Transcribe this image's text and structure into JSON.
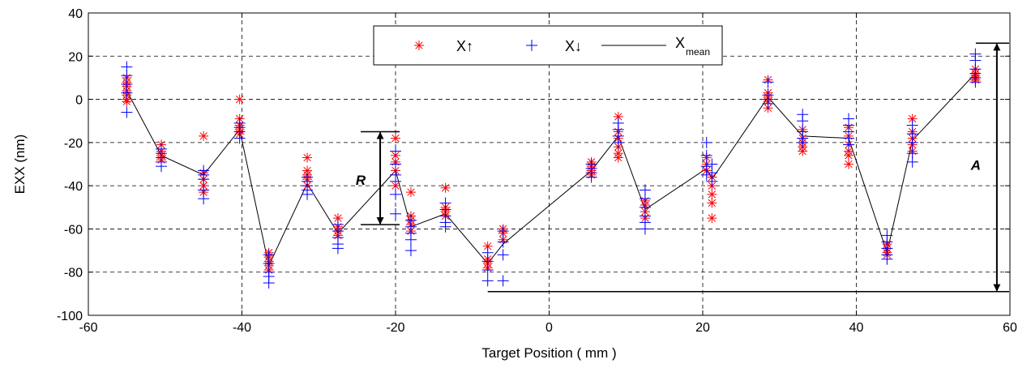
{
  "chart_data": {
    "type": "scatter",
    "xlabel": "Target Position ( mm )",
    "ylabel": "EXX (nm)",
    "xlim": [
      -60,
      60
    ],
    "ylim": [
      -100,
      40
    ],
    "xticks": [
      -60,
      -40,
      -20,
      0,
      20,
      40,
      60
    ],
    "yticks": [
      -100,
      -80,
      -60,
      -40,
      -20,
      0,
      20,
      40
    ],
    "xtick_labels": [
      "-60",
      "-40",
      "-20",
      "0",
      "20",
      "40",
      "60"
    ],
    "ytick_labels": [
      "-100",
      "-80",
      "-60",
      "-40",
      "-20",
      "0",
      "20",
      "40"
    ],
    "grid": "dashed",
    "legend": {
      "placement": "top-center",
      "entries": [
        {
          "label": "X↑",
          "marker": "star",
          "color": "#ff0000"
        },
        {
          "label": "X↓",
          "marker": "plus",
          "color": "#0000ff"
        },
        {
          "label_main": "X",
          "label_sub": "mean",
          "marker": "line",
          "color": "#000000"
        }
      ]
    },
    "series": [
      {
        "name": "X↑",
        "marker": "star",
        "color": "#ff0000",
        "points": [
          [
            -55,
            10
          ],
          [
            -55,
            8
          ],
          [
            -55,
            6
          ],
          [
            -55,
            4
          ],
          [
            -55,
            2
          ],
          [
            -55,
            0
          ],
          [
            -55,
            -1
          ],
          [
            -50.5,
            -21
          ],
          [
            -50.5,
            -24
          ],
          [
            -50.5,
            -26
          ],
          [
            -50.5,
            -28
          ],
          [
            -45,
            -17
          ],
          [
            -45,
            -34
          ],
          [
            -45,
            -37
          ],
          [
            -45,
            -40
          ],
          [
            -45,
            -43
          ],
          [
            -40.3,
            0
          ],
          [
            -40.3,
            -9
          ],
          [
            -40.3,
            -12
          ],
          [
            -40.3,
            -14
          ],
          [
            -40.3,
            -16
          ],
          [
            -36.5,
            -71
          ],
          [
            -36.5,
            -73
          ],
          [
            -36.5,
            -75
          ],
          [
            -36.5,
            -77
          ],
          [
            -36.5,
            -79
          ],
          [
            -31.5,
            -27
          ],
          [
            -31.5,
            -33
          ],
          [
            -31.5,
            -35
          ],
          [
            -31.5,
            -37
          ],
          [
            -31.5,
            -40
          ],
          [
            -27.5,
            -55
          ],
          [
            -27.5,
            -59
          ],
          [
            -27.5,
            -61
          ],
          [
            -27.5,
            -63
          ],
          [
            -20,
            -18
          ],
          [
            -20,
            -26
          ],
          [
            -20,
            -29
          ],
          [
            -20,
            -33
          ],
          [
            -20,
            -40
          ],
          [
            -18,
            -43
          ],
          [
            -18,
            -54
          ],
          [
            -18,
            -56
          ],
          [
            -18,
            -58
          ],
          [
            -18,
            -61
          ],
          [
            -13.5,
            -41
          ],
          [
            -13.5,
            -50
          ],
          [
            -13.5,
            -52
          ],
          [
            -13.5,
            -54
          ],
          [
            -8,
            -68
          ],
          [
            -8,
            -74
          ],
          [
            -8,
            -76
          ],
          [
            -8,
            -78
          ],
          [
            -6,
            -60
          ],
          [
            -6,
            -62
          ],
          [
            -6,
            -65
          ],
          [
            5.5,
            -29
          ],
          [
            5.5,
            -31
          ],
          [
            5.5,
            -33
          ],
          [
            5.5,
            -35
          ],
          [
            9,
            -8
          ],
          [
            9,
            -15
          ],
          [
            9,
            -18
          ],
          [
            9,
            -22
          ],
          [
            9,
            -25
          ],
          [
            9,
            -27
          ],
          [
            12.5,
            -47
          ],
          [
            12.5,
            -49
          ],
          [
            12.5,
            -52
          ],
          [
            12.5,
            -55
          ],
          [
            20.5,
            -27
          ],
          [
            20.5,
            -30
          ],
          [
            20.5,
            -33
          ],
          [
            21.2,
            -36
          ],
          [
            21.2,
            -40
          ],
          [
            21.2,
            -44
          ],
          [
            21.2,
            -48
          ],
          [
            21.2,
            -55
          ],
          [
            28.5,
            9
          ],
          [
            28.5,
            3
          ],
          [
            28.5,
            1
          ],
          [
            28.5,
            -1
          ],
          [
            28.5,
            -4
          ],
          [
            33,
            -14
          ],
          [
            33,
            -18
          ],
          [
            33,
            -20
          ],
          [
            33,
            -22
          ],
          [
            33,
            -24
          ],
          [
            39,
            -13
          ],
          [
            39,
            -17
          ],
          [
            39,
            -21
          ],
          [
            39,
            -24
          ],
          [
            39,
            -26
          ],
          [
            39,
            -30
          ],
          [
            44,
            -67
          ],
          [
            44,
            -69
          ],
          [
            44,
            -71
          ],
          [
            44,
            -72
          ],
          [
            47.3,
            -9
          ],
          [
            47.3,
            -15
          ],
          [
            47.3,
            -18
          ],
          [
            47.3,
            -21
          ],
          [
            47.3,
            -24
          ],
          [
            55.5,
            14
          ],
          [
            55.5,
            12
          ],
          [
            55.5,
            11
          ],
          [
            55.5,
            10
          ],
          [
            55.5,
            9
          ]
        ]
      },
      {
        "name": "X↓",
        "marker": "plus",
        "color": "#0000ff",
        "points": [
          [
            -55,
            15
          ],
          [
            -55,
            11
          ],
          [
            -55,
            7
          ],
          [
            -55,
            3
          ],
          [
            -55,
            -6
          ],
          [
            -50.5,
            -23
          ],
          [
            -50.5,
            -25
          ],
          [
            -50.5,
            -27
          ],
          [
            -50.5,
            -29
          ],
          [
            -50.5,
            -31
          ],
          [
            -45,
            -33
          ],
          [
            -45,
            -35
          ],
          [
            -45,
            -37
          ],
          [
            -45,
            -42
          ],
          [
            -45,
            -46
          ],
          [
            -40.3,
            -11
          ],
          [
            -40.3,
            -13
          ],
          [
            -40.3,
            -15
          ],
          [
            -40.3,
            -18
          ],
          [
            -36.5,
            -72
          ],
          [
            -36.5,
            -76
          ],
          [
            -36.5,
            -80
          ],
          [
            -36.5,
            -82
          ],
          [
            -36.5,
            -85
          ],
          [
            -31.5,
            -36
          ],
          [
            -31.5,
            -38
          ],
          [
            -31.5,
            -40
          ],
          [
            -31.5,
            -42
          ],
          [
            -31.5,
            -44
          ],
          [
            -27.5,
            -58
          ],
          [
            -27.5,
            -61
          ],
          [
            -27.5,
            -64
          ],
          [
            -27.5,
            -67
          ],
          [
            -27.5,
            -69
          ],
          [
            -20,
            -24
          ],
          [
            -20,
            -30
          ],
          [
            -20,
            -35
          ],
          [
            -20,
            -38
          ],
          [
            -20,
            -44
          ],
          [
            -20,
            -53
          ],
          [
            -18,
            -56
          ],
          [
            -18,
            -59
          ],
          [
            -18,
            -62
          ],
          [
            -18,
            -65
          ],
          [
            -18,
            -70
          ],
          [
            -13.5,
            -48
          ],
          [
            -13.5,
            -51
          ],
          [
            -13.5,
            -54
          ],
          [
            -13.5,
            -57
          ],
          [
            -13.5,
            -59
          ],
          [
            -8,
            -71
          ],
          [
            -8,
            -75
          ],
          [
            -8,
            -79
          ],
          [
            -8,
            -84
          ],
          [
            -6,
            -61
          ],
          [
            -6,
            -66
          ],
          [
            -6,
            -72
          ],
          [
            -6,
            -84
          ],
          [
            5.5,
            -30
          ],
          [
            5.5,
            -32
          ],
          [
            5.5,
            -34
          ],
          [
            5.5,
            -36
          ],
          [
            9,
            -11
          ],
          [
            9,
            -14
          ],
          [
            9,
            -17
          ],
          [
            9,
            -20
          ],
          [
            12.5,
            -42
          ],
          [
            12.5,
            -46
          ],
          [
            12.5,
            -50
          ],
          [
            12.5,
            -54
          ],
          [
            12.5,
            -57
          ],
          [
            12.5,
            -60
          ],
          [
            20.5,
            -20
          ],
          [
            20.5,
            -26
          ],
          [
            20.5,
            -31
          ],
          [
            20.5,
            -35
          ],
          [
            21.2,
            -30
          ],
          [
            21.2,
            -34
          ],
          [
            21.2,
            -38
          ],
          [
            28.5,
            8
          ],
          [
            28.5,
            2
          ],
          [
            28.5,
            0
          ],
          [
            28.5,
            -2
          ],
          [
            33,
            -7
          ],
          [
            33,
            -10
          ],
          [
            33,
            -15
          ],
          [
            33,
            -18
          ],
          [
            33,
            -20
          ],
          [
            39,
            -9
          ],
          [
            39,
            -12
          ],
          [
            39,
            -15
          ],
          [
            39,
            -18
          ],
          [
            39,
            -21
          ],
          [
            44,
            -63
          ],
          [
            44,
            -66
          ],
          [
            44,
            -69
          ],
          [
            44,
            -72
          ],
          [
            44,
            -74
          ],
          [
            47.3,
            -12
          ],
          [
            47.3,
            -16
          ],
          [
            47.3,
            -20
          ],
          [
            47.3,
            -25
          ],
          [
            47.3,
            -29
          ],
          [
            55.5,
            21
          ],
          [
            55.5,
            18
          ],
          [
            55.5,
            14
          ],
          [
            55.5,
            12
          ],
          [
            55.5,
            10
          ],
          [
            55.5,
            8
          ]
        ]
      },
      {
        "name": "X mean",
        "marker": "line",
        "color": "#000000",
        "x": [
          -55,
          -50.5,
          -45,
          -40.3,
          -36.5,
          -31.5,
          -27.5,
          -20,
          -18,
          -13.5,
          -8,
          -6,
          5.5,
          9,
          12.5,
          20.5,
          21.2,
          28.5,
          33,
          39,
          44,
          47.3,
          55.5
        ],
        "y": [
          4,
          -26,
          -35,
          -14,
          -77,
          -39,
          -62,
          -33,
          -59,
          -53,
          -76,
          -67,
          -33,
          -17,
          -51,
          -32,
          -37,
          1,
          -17,
          -18,
          -71,
          -19,
          12
        ]
      }
    ],
    "annotations": [
      {
        "label": "R",
        "type": "range-arrow",
        "x": -22,
        "y_from": -58,
        "y_to": -15
      },
      {
        "label": "A",
        "type": "range-arrow",
        "x": 58.3,
        "y_from": -89,
        "y_to": 26
      }
    ]
  }
}
